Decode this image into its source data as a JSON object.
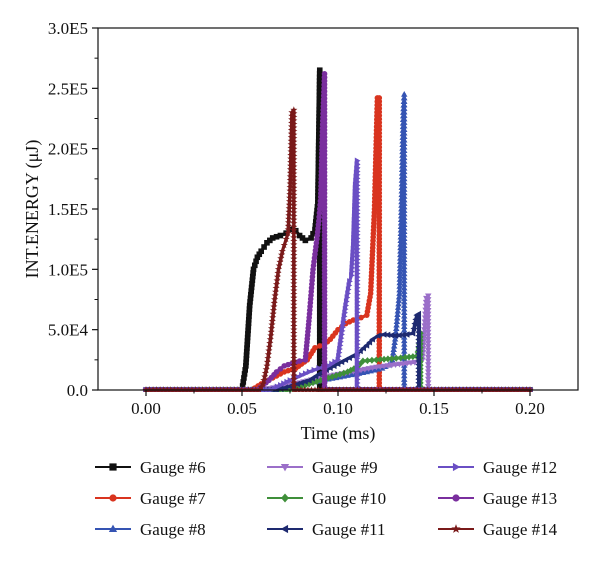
{
  "chart_data": {
    "type": "line",
    "title": "",
    "xlabel": "Time (ms)",
    "ylabel": "INT.ENERGY (μJ)",
    "xlim": [
      -0.025,
      0.225
    ],
    "ylim": [
      0,
      300000
    ],
    "x_ticks": [
      0.0,
      0.05,
      0.1,
      0.15,
      0.2
    ],
    "x_tick_labels": [
      "0.00",
      "0.05",
      "0.10",
      "0.15",
      "0.20"
    ],
    "y_ticks": [
      0,
      50000,
      100000,
      150000,
      200000,
      250000,
      300000
    ],
    "y_tick_labels": [
      "0.0",
      "5.0E4",
      "1.0E5",
      "1.5E5",
      "2.0E5",
      "2.5E5",
      "3.0E5"
    ],
    "grid": false,
    "legend_position": "bottom",
    "series": [
      {
        "name": "Gauge #6",
        "color": "#111111",
        "marker": "square",
        "x": [
          0.0,
          0.05,
          0.052,
          0.054,
          0.056,
          0.058,
          0.06,
          0.063,
          0.066,
          0.07,
          0.073,
          0.076,
          0.078,
          0.08,
          0.083,
          0.086,
          0.088,
          0.0895,
          0.0905,
          0.0905,
          0.2
        ],
        "y": [
          0,
          0,
          20000,
          70000,
          100000,
          110000,
          115000,
          122000,
          126000,
          128000,
          130000,
          133000,
          132000,
          128000,
          124000,
          126000,
          133000,
          155000,
          265000,
          0,
          0
        ]
      },
      {
        "name": "Gauge #7",
        "color": "#d9341f",
        "marker": "circle",
        "x": [
          0.0,
          0.055,
          0.06,
          0.066,
          0.072,
          0.078,
          0.084,
          0.088,
          0.093,
          0.096,
          0.1,
          0.104,
          0.108,
          0.112,
          0.115,
          0.117,
          0.119,
          0.1205,
          0.1215,
          0.1215,
          0.2
        ],
        "y": [
          0,
          0,
          5000,
          10000,
          15000,
          18000,
          25000,
          35000,
          38000,
          42000,
          50000,
          55000,
          58000,
          60000,
          62000,
          80000,
          150000,
          242000,
          242000,
          0,
          0
        ]
      },
      {
        "name": "Gauge #8",
        "color": "#3554b3",
        "marker": "triangle-up",
        "x": [
          0.0,
          0.068,
          0.075,
          0.085,
          0.095,
          0.105,
          0.115,
          0.123,
          0.128,
          0.13,
          0.132,
          0.133,
          0.134,
          0.1345,
          0.1345,
          0.2
        ],
        "y": [
          0,
          0,
          3000,
          6000,
          9000,
          12000,
          15000,
          18000,
          22000,
          45000,
          80000,
          150000,
          230000,
          245000,
          0,
          0
        ]
      },
      {
        "name": "Gauge #9",
        "color": "#9b6fc9",
        "marker": "triangle-down",
        "x": [
          0.0,
          0.06,
          0.07,
          0.08,
          0.09,
          0.1,
          0.11,
          0.12,
          0.13,
          0.14,
          0.144,
          0.145,
          0.146,
          0.147,
          0.147,
          0.2
        ],
        "y": [
          0,
          0,
          3000,
          6000,
          10000,
          13000,
          16000,
          19000,
          21000,
          23000,
          25000,
          50000,
          76000,
          78000,
          0,
          0
        ]
      },
      {
        "name": "Gauge #10",
        "color": "#3f8f3a",
        "marker": "diamond",
        "x": [
          0.0,
          0.075,
          0.085,
          0.095,
          0.105,
          0.11,
          0.113,
          0.12,
          0.128,
          0.135,
          0.141,
          0.142,
          0.143,
          0.143,
          0.2
        ],
        "y": [
          0,
          0,
          5000,
          10000,
          15000,
          19000,
          24000,
          25000,
          26000,
          27000,
          28000,
          35000,
          47000,
          0,
          0
        ]
      },
      {
        "name": "Gauge #11",
        "color": "#1e2a70",
        "marker": "triangle-left",
        "x": [
          0.0,
          0.068,
          0.075,
          0.085,
          0.092,
          0.098,
          0.104,
          0.11,
          0.115,
          0.118,
          0.121,
          0.124,
          0.13,
          0.136,
          0.139,
          0.14,
          0.141,
          0.142,
          0.142,
          0.2
        ],
        "y": [
          0,
          0,
          3000,
          8000,
          15000,
          20000,
          25000,
          30000,
          37000,
          42000,
          45000,
          46000,
          45000,
          46000,
          47000,
          55000,
          62000,
          63000,
          0,
          0
        ]
      },
      {
        "name": "Gauge #12",
        "color": "#6a4fc4",
        "marker": "triangle-right",
        "x": [
          0.0,
          0.065,
          0.075,
          0.085,
          0.09,
          0.095,
          0.1,
          0.104,
          0.106,
          0.107,
          0.108,
          0.109,
          0.11,
          0.11,
          0.2
        ],
        "y": [
          0,
          0,
          8000,
          15000,
          18000,
          20000,
          25000,
          70000,
          90000,
          95000,
          120000,
          170000,
          190000,
          0,
          0
        ]
      },
      {
        "name": "Gauge #13",
        "color": "#7a2f9e",
        "marker": "circle",
        "x": [
          0.0,
          0.058,
          0.064,
          0.068,
          0.072,
          0.076,
          0.08,
          0.083,
          0.085,
          0.087,
          0.089,
          0.09,
          0.091,
          0.092,
          0.093,
          0.093,
          0.2
        ],
        "y": [
          0,
          0,
          8000,
          15000,
          20000,
          22000,
          24000,
          25000,
          60000,
          100000,
          125000,
          140000,
          160000,
          220000,
          262000,
          0,
          0
        ]
      },
      {
        "name": "Gauge #14",
        "color": "#7a1a1a",
        "marker": "star",
        "x": [
          0.0,
          0.059,
          0.061,
          0.063,
          0.065,
          0.067,
          0.069,
          0.071,
          0.072,
          0.073,
          0.074,
          0.075,
          0.076,
          0.077,
          0.077,
          0.2
        ],
        "y": [
          0,
          0,
          5000,
          20000,
          45000,
          75000,
          100000,
          115000,
          120000,
          125000,
          130000,
          165000,
          230000,
          232000,
          0,
          0
        ]
      }
    ]
  }
}
